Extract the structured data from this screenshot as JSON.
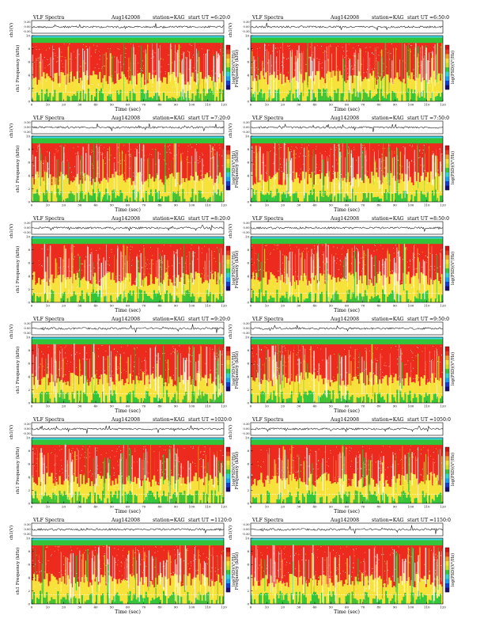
{
  "header_fixed": {
    "title": "VLF Spectra",
    "date": "Aug142008",
    "station": "station=KAG",
    "start_prefix": "start  UT"
  },
  "colors": {
    "background_red": "#ec2a1e",
    "band_green": "#34c43a",
    "cyan": "#3fd8e8",
    "yellow": "#f7e23c",
    "white_streak": "#ffffff",
    "colorbar": [
      "#1a0c7a",
      "#1040d8",
      "#18a4f0",
      "#30d8d0",
      "#38c838",
      "#c8e028",
      "#f8e030",
      "#f8a020",
      "#f03a1c",
      "#d81010"
    ]
  },
  "chart_data": [
    {
      "type": "heatmap",
      "title": "VLF Spectra",
      "date": "Aug142008",
      "station": "station=KAG",
      "start_ut": "=6:20:0",
      "top_ylabel": "ch1(V)",
      "top_yticks": [
        "0.30",
        "0.00",
        "-0.30"
      ],
      "ylabel": "ch1 Frequency (kHz)",
      "yticks": [
        "0",
        "2",
        "4",
        "6",
        "8",
        "10"
      ],
      "ylim": [
        0,
        10
      ],
      "xlabel": "Time (sec)",
      "xticks": [
        "0",
        "10",
        "20",
        "30",
        "40",
        "50",
        "60",
        "70",
        "80",
        "90",
        "100",
        "110",
        "120"
      ],
      "xlim": [
        0,
        120
      ],
      "colorbar_label": "log(PSD)(V²/Hz)",
      "green_band_khz": [
        8.9,
        9.7
      ],
      "white_line_khz": 1.4
    },
    {
      "type": "heatmap",
      "title": "VLF Spectra",
      "date": "Aug142008",
      "station": "station=KAG",
      "start_ut": "=6:50:0",
      "top_ylabel": "ch1(V)",
      "top_yticks": [
        "0.30",
        "0.00",
        "-0.30"
      ],
      "ylabel": "Frequency (kHz)",
      "yticks": [
        "0",
        "2",
        "4",
        "6",
        "8",
        "10"
      ],
      "ylim": [
        0,
        10
      ],
      "xlabel": "Time (sec)",
      "xticks": [
        "0",
        "10",
        "20",
        "30",
        "40",
        "50",
        "60",
        "70",
        "80",
        "90",
        "100",
        "110",
        "120"
      ],
      "xlim": [
        0,
        120
      ],
      "colorbar_label": "log(PSD)(V²/Hz)",
      "green_band_khz": [
        8.9,
        9.7
      ],
      "white_line_khz": 1.4
    },
    {
      "type": "heatmap",
      "title": "VLF Spectra",
      "date": "Aug142008",
      "station": "station=KAG",
      "start_ut": "=7:20:0",
      "top_ylabel": "ch1(V)",
      "top_yticks": [
        "0.30",
        "0.00",
        "-0.30"
      ],
      "ylabel": "ch1 Frequency (kHz)",
      "yticks": [
        "0",
        "2",
        "4",
        "6",
        "8",
        "10"
      ],
      "ylim": [
        0,
        10
      ],
      "xlabel": "Time (sec)",
      "xticks": [
        "0",
        "10",
        "20",
        "30",
        "40",
        "50",
        "60",
        "70",
        "80",
        "90",
        "100",
        "110",
        "120"
      ],
      "xlim": [
        0,
        120
      ],
      "colorbar_label": "log(PSD)(V²/Hz)",
      "green_band_khz": [
        8.9,
        9.7
      ],
      "white_line_khz": 1.4
    },
    {
      "type": "heatmap",
      "title": "VLF Spectra",
      "date": "Aug142008",
      "station": "station=KAG",
      "start_ut": "=7:50:0",
      "top_ylabel": "ch1(V)",
      "top_yticks": [
        "0.30",
        "0.00",
        "-0.30"
      ],
      "ylabel": "Frequency (kHz)",
      "yticks": [
        "0",
        "2",
        "4",
        "6",
        "8",
        "10"
      ],
      "ylim": [
        0,
        10
      ],
      "xlabel": "Time (sec)",
      "xticks": [
        "0",
        "10",
        "20",
        "30",
        "40",
        "50",
        "60",
        "70",
        "80",
        "90",
        "100",
        "110",
        "120"
      ],
      "xlim": [
        0,
        120
      ],
      "colorbar_label": "log(PSD)(V²/Hz)",
      "green_band_khz": [
        8.9,
        9.7
      ],
      "white_line_khz": 1.4
    },
    {
      "type": "heatmap",
      "title": "VLF Spectra",
      "date": "Aug142008",
      "station": "station=KAG",
      "start_ut": "=8:20:0",
      "top_ylabel": "ch1(V)",
      "top_yticks": [
        "0.30",
        "0.00",
        "-0.30"
      ],
      "ylabel": "ch1 Frequency (kHz)",
      "yticks": [
        "0",
        "2",
        "4",
        "6",
        "8",
        "10"
      ],
      "ylim": [
        0,
        10
      ],
      "xlabel": "Time (sec)",
      "xticks": [
        "0",
        "10",
        "20",
        "30",
        "40",
        "50",
        "60",
        "70",
        "80",
        "90",
        "100",
        "110",
        "120"
      ],
      "xlim": [
        0,
        120
      ],
      "colorbar_label": "log(PSD)(V²/Hz)",
      "green_band_khz": [
        8.9,
        9.7
      ],
      "white_line_khz": 1.4
    },
    {
      "type": "heatmap",
      "title": "VLF Spectra",
      "date": "Aug142008",
      "station": "station=KAG",
      "start_ut": "=8:50:0",
      "top_ylabel": "ch1(V)",
      "top_yticks": [
        "0.30",
        "0.00",
        "-0.30"
      ],
      "ylabel": "Frequency (kHz)",
      "yticks": [
        "0",
        "2",
        "4",
        "6",
        "8",
        "10"
      ],
      "ylim": [
        0,
        10
      ],
      "xlabel": "Time (sec)",
      "xticks": [
        "0",
        "10",
        "20",
        "30",
        "40",
        "50",
        "60",
        "70",
        "80",
        "90",
        "100",
        "110",
        "120"
      ],
      "xlim": [
        0,
        120
      ],
      "colorbar_label": "log(PSD)(V²/Hz)",
      "green_band_khz": [
        8.9,
        9.7
      ],
      "white_line_khz": 1.4
    },
    {
      "type": "heatmap",
      "title": "VLF Spectra",
      "date": "Aug142008",
      "station": "station=KAG",
      "start_ut": "=9:20:0",
      "top_ylabel": "ch1(V)",
      "top_yticks": [
        "0.30",
        "0.00",
        "-0.30"
      ],
      "ylabel": "ch1 Frequency (kHz)",
      "yticks": [
        "0",
        "2",
        "4",
        "6",
        "8",
        "10"
      ],
      "ylim": [
        0,
        10
      ],
      "xlabel": "Time (sec)",
      "xticks": [
        "0",
        "10",
        "20",
        "30",
        "40",
        "50",
        "60",
        "70",
        "80",
        "90",
        "100",
        "110",
        "120"
      ],
      "xlim": [
        0,
        120
      ],
      "colorbar_label": "log(PSD)(V²/Hz)",
      "green_band_khz": [
        8.9,
        9.7
      ],
      "white_line_khz": 1.4
    },
    {
      "type": "heatmap",
      "title": "VLF Spectra",
      "date": "Aug142008",
      "station": "station=KAG",
      "start_ut": "=9:50:0",
      "top_ylabel": "ch1(V)",
      "top_yticks": [
        "0.30",
        "0.00",
        "-0.30"
      ],
      "ylabel": "Frequency (kHz)",
      "yticks": [
        "0",
        "2",
        "4",
        "6",
        "8",
        "10"
      ],
      "ylim": [
        0,
        10
      ],
      "xlabel": "Time (sec)",
      "xticks": [
        "0",
        "10",
        "20",
        "30",
        "40",
        "50",
        "60",
        "70",
        "80",
        "90",
        "100",
        "110",
        "120"
      ],
      "xlim": [
        0,
        120
      ],
      "colorbar_label": "log(PSD)(V²/Hz)",
      "green_band_khz": [
        8.9,
        9.7
      ],
      "white_line_khz": 1.4
    },
    {
      "type": "heatmap",
      "title": "VLF Spectra",
      "date": "Aug142008",
      "station": "station=KAG",
      "start_ut": "=1020:0",
      "top_ylabel": "ch1(V)",
      "top_yticks": [
        "0.30",
        "0.00",
        "-0.30"
      ],
      "ylabel": "ch1 Frequency (kHz)",
      "yticks": [
        "0",
        "2",
        "4",
        "6",
        "8",
        "10"
      ],
      "ylim": [
        0,
        10
      ],
      "xlabel": "Time (sec)",
      "xticks": [
        "0",
        "10",
        "20",
        "30",
        "40",
        "50",
        "60",
        "70",
        "80",
        "90",
        "100",
        "110",
        "120"
      ],
      "xlim": [
        0,
        120
      ],
      "colorbar_label": "log(PSD)(V²/Hz)",
      "green_band_khz": [
        8.9,
        9.7
      ],
      "white_line_khz": 1.4
    },
    {
      "type": "heatmap",
      "title": "VLF Spectra",
      "date": "Aug142008",
      "station": "station=KAG",
      "start_ut": "=1050:0",
      "top_ylabel": "ch1(V)",
      "top_yticks": [
        "0.30",
        "0.00",
        "-0.30"
      ],
      "ylabel": "Frequency (kHz)",
      "yticks": [
        "0",
        "2",
        "4",
        "6",
        "8",
        "10"
      ],
      "ylim": [
        0,
        10
      ],
      "xlabel": "Time (sec)",
      "xticks": [
        "0",
        "10",
        "20",
        "30",
        "40",
        "50",
        "60",
        "70",
        "80",
        "90",
        "100",
        "110",
        "120"
      ],
      "xlim": [
        0,
        120
      ],
      "colorbar_label": "log(PSD)(V²/Hz)",
      "green_band_khz": [
        8.9,
        9.7
      ],
      "white_line_khz": 1.4
    },
    {
      "type": "heatmap",
      "title": "VLF Spectra",
      "date": "Aug142008",
      "station": "station=KAG",
      "start_ut": "=1120:0",
      "top_ylabel": "ch1(V)",
      "top_yticks": [
        "0.30",
        "0.00",
        "-0.30"
      ],
      "ylabel": "ch1 Frequency (kHz)",
      "yticks": [
        "0",
        "2",
        "4",
        "6",
        "8",
        "10"
      ],
      "ylim": [
        0,
        10
      ],
      "xlabel": "Time (sec)",
      "xticks": [
        "0",
        "10",
        "20",
        "30",
        "40",
        "50",
        "60",
        "70",
        "80",
        "90",
        "100",
        "110",
        "120"
      ],
      "xlim": [
        0,
        120
      ],
      "colorbar_label": "log(PSD)(V²/Hz)",
      "green_band_khz": [
        8.9,
        9.7
      ],
      "white_line_khz": 1.4
    },
    {
      "type": "heatmap",
      "title": "VLF Spectra",
      "date": "Aug142008",
      "station": "station=KAG",
      "start_ut": "=1150:0",
      "top_ylabel": "ch1(V)",
      "top_yticks": [
        "0.30",
        "0.00",
        "-0.30"
      ],
      "ylabel": "Frequency (kHz)",
      "yticks": [
        "0",
        "2",
        "4",
        "6",
        "8",
        "10"
      ],
      "ylim": [
        0,
        10
      ],
      "xlabel": "Time (sec)",
      "xticks": [
        "0",
        "10",
        "20",
        "30",
        "40",
        "50",
        "60",
        "70",
        "80",
        "90",
        "100",
        "110",
        "120"
      ],
      "xlim": [
        0,
        120
      ],
      "colorbar_label": "log(PSD)(V²/Hz)",
      "green_band_khz": [
        8.9,
        9.7
      ],
      "white_line_khz": 1.4
    }
  ]
}
